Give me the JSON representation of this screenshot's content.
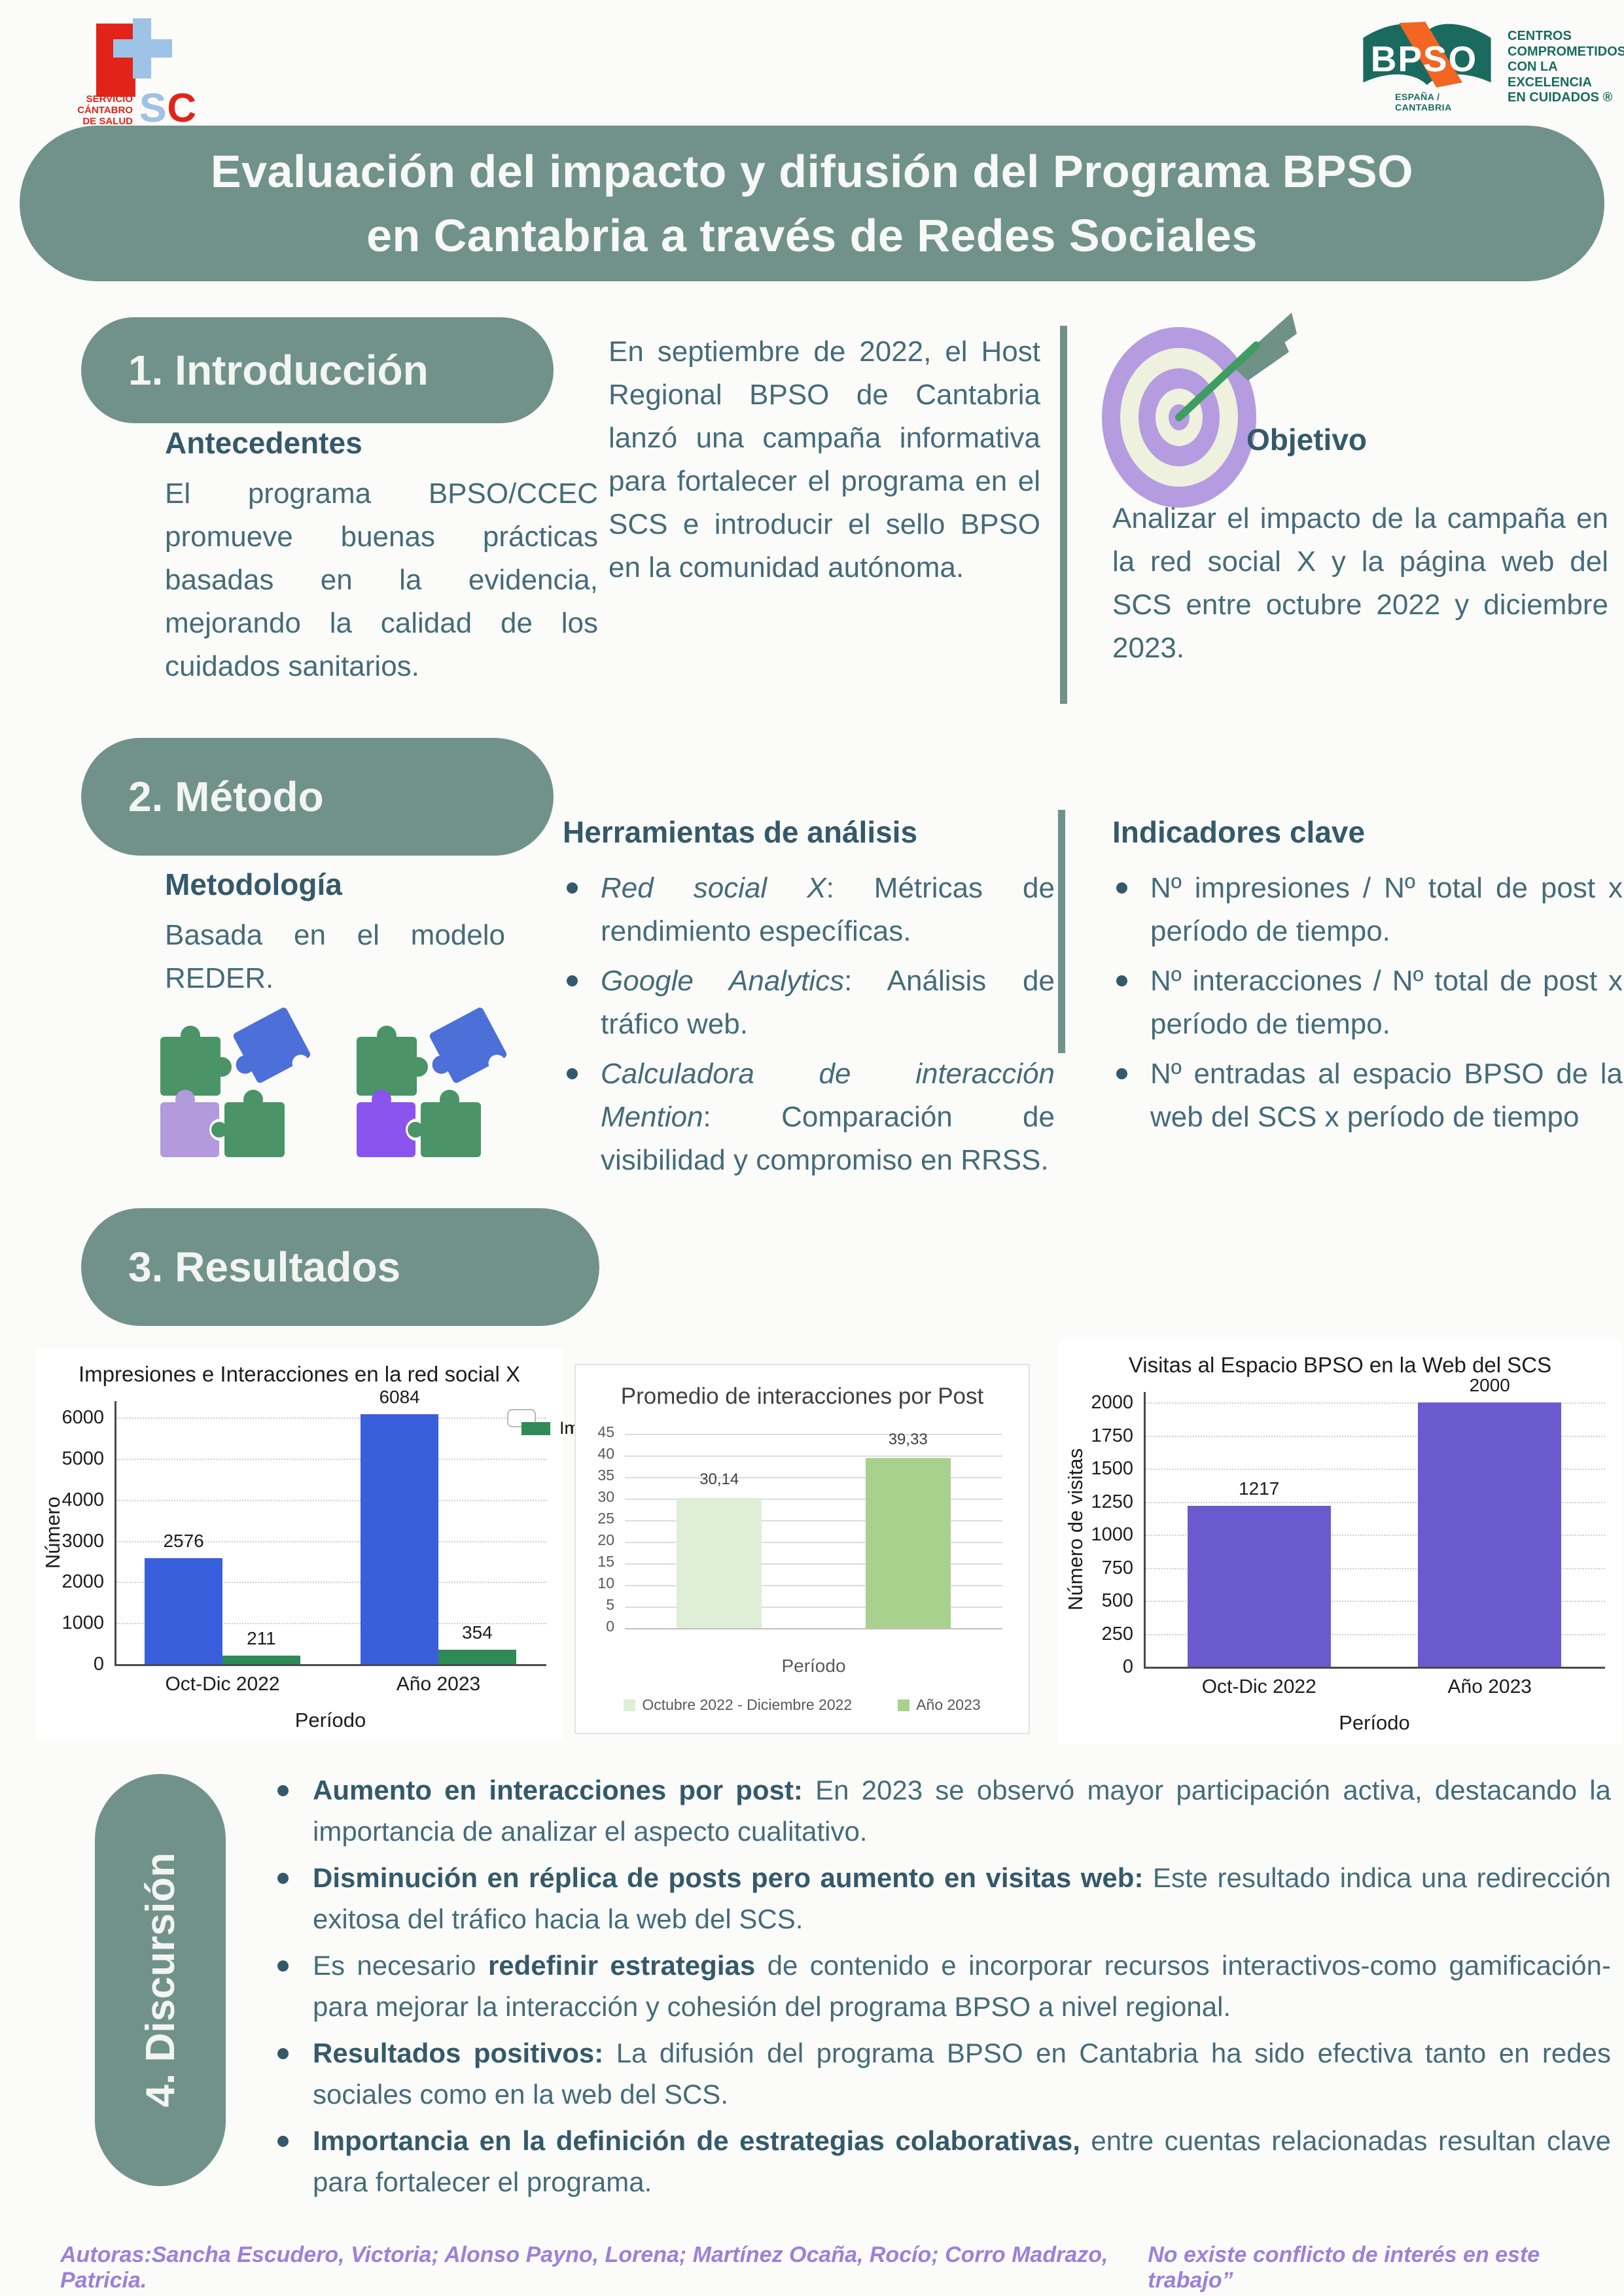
{
  "header": {
    "scs": {
      "small_text": "SERVICIO\nCÁNTABRO\nDE SALUD",
      "acr_red": "SC",
      "acr_blue": "S"
    },
    "bpso": {
      "acronym": "BPSO",
      "tagline": "CENTROS\nCOMPROMETIDOS\nCON LA\nEXCELENCIA\nEN CUIDADOS ®",
      "region": "ESPAÑA / CANTABRIA"
    }
  },
  "title": {
    "line1": "Evaluación del impacto y difusión del Programa BPSO",
    "line2": "en Cantabria a través de Redes Sociales"
  },
  "sections": {
    "intro": {
      "heading": "1. Introducción",
      "antecedentes_title": "Antecedentes",
      "antecedentes_text": "El programa BPSO/CCEC promueve buenas prácticas basadas en la evidencia, mejorando la calidad de los cuidados sanitarios.",
      "campaign_text": "En septiembre de 2022, el Host Regional BPSO de Cantabria lanzó una campaña informativa para fortalecer el programa en el SCS e introducir el sello BPSO en la comunidad autónoma.",
      "objetivo_title": "Objetivo",
      "objetivo_text": "Analizar el impacto de la campaña en la red social X y la página web del SCS entre octubre 2022 y diciembre 2023."
    },
    "metodo": {
      "heading": "2. Método",
      "metodologia_title": "Metodología",
      "metodologia_text": "Basada en el modelo REDER.",
      "herramientas_title": "Herramientas de análisis",
      "herramientas": [
        {
          "lead": "Red social X",
          "rest": ": Métricas de rendimiento específicas."
        },
        {
          "lead": "Google Analytics",
          "rest": ": Análisis de tráfico web."
        },
        {
          "lead": "Calculadora de interacción Mention",
          "rest": ": Comparación de visibilidad y compromiso en RRSS."
        }
      ],
      "indicadores_title": "Indicadores clave",
      "indicadores": [
        "Nº impresiones / Nº total de post x período de tiempo.",
        "Nº interacciones / Nº total de post x período de tiempo.",
        "Nº entradas al espacio BPSO de la web del SCS x período de tiempo"
      ]
    },
    "resultados": {
      "heading": "3. Resultados"
    },
    "discusion": {
      "heading": "4. Discursión",
      "bullets": [
        {
          "bold": "Aumento en interacciones por post:",
          "text": " En 2023 se observó mayor participación activa, destacando la importancia de analizar el aspecto cualitativo."
        },
        {
          "bold": "Disminución en réplica de posts pero aumento en visitas web:",
          "text": " Este resultado indica una redirección exitosa del tráfico hacia la web del SCS."
        },
        {
          "pre": "Es necesario ",
          "bold": "redefinir estrategias",
          "text": " de contenido e incorporar recursos interactivos-como gamificación- para mejorar la interacción y cohesión del programa BPSO a nivel regional."
        },
        {
          "bold": "Resultados positivos:",
          "text": " La difusión del programa BPSO en Cantabria ha sido efectiva tanto en redes sociales como en la web del SCS."
        },
        {
          "bold": "Importancia en la definición de estrategias colaborativas,",
          "text": " entre cuentas relacionadas resultan clave para fortalecer el programa."
        }
      ]
    }
  },
  "footer": {
    "authors": "Autoras:Sancha Escudero, Victoria; Alonso Payno, Lorena; Martínez Ocaña, Rocío; Corro Madrazo, Patricia.",
    "disclaimer": "No existe conflicto de interés en este trabajo”"
  },
  "colors": {
    "sage_green": "#71928a",
    "ink_teal": "#456b79",
    "heading_teal": "#34596a",
    "footer_purple": "#9d80d8",
    "scs_red": "#e2231a",
    "scs_blue": "#9dc3e6",
    "bpso_teal": "#1b6a60",
    "bpso_orange": "#f26522",
    "puzzle_green": "#4a9468",
    "puzzle_blue": "#4d6fd8",
    "puzzle_lavender": "#b29add",
    "puzzle_purple": "#8a53ee",
    "target_purple": "#b59ce0",
    "target_cream": "#edf1dd",
    "arrow_green": "#3f9c63",
    "feather_green": "#6f9186"
  },
  "chart_data": [
    {
      "id": "chart1",
      "type": "bar",
      "style": "matplotlib",
      "title": "Impresiones e Interacciones en la red social X",
      "xlabel": "Período",
      "ylabel": "Número",
      "categories": [
        "Oct-Dic 2022",
        "Año 2023"
      ],
      "series": [
        {
          "name": "Impresiones",
          "color": "#3a5fdc",
          "values": [
            2576,
            6084
          ],
          "labels": [
            "2576",
            "6084"
          ]
        },
        {
          "name": "Interacciones",
          "color": "#2e8b57",
          "values": [
            211,
            354
          ],
          "labels": [
            "211",
            "354"
          ]
        }
      ],
      "ylim": [
        0,
        6400
      ],
      "yticks": [
        0,
        1000,
        2000,
        3000,
        4000,
        5000,
        6000
      ],
      "grid": "dotted",
      "legend": {
        "position": "top-right",
        "items": [
          {
            "label": "Impresiones",
            "color": "#3a5fdc"
          },
          {
            "label": "Interacciones",
            "color": "#2e8b57"
          }
        ]
      }
    },
    {
      "id": "chart2",
      "type": "bar",
      "style": "excel",
      "title": "Promedio de interacciones por Post",
      "xlabel": "Período",
      "ylabel": "",
      "categories": [
        "",
        ""
      ],
      "series": [
        {
          "name": "Promedio",
          "colors": [
            "#dfeed7",
            "#a9d18e"
          ],
          "values": [
            30.14,
            39.33
          ],
          "labels": [
            "30,14",
            "39,33"
          ]
        }
      ],
      "bar_frac": 0.45,
      "ylim": [
        0,
        45
      ],
      "yticks": [
        0,
        5,
        10,
        15,
        20,
        25,
        30,
        35,
        40,
        45
      ],
      "grid": "solid",
      "legend": {
        "position": "bottom",
        "items": [
          {
            "label": "Octubre 2022 - Diciembre 2022",
            "color": "#dfeed7"
          },
          {
            "label": "Año 2023",
            "color": "#a9d18e"
          }
        ]
      }
    },
    {
      "id": "chart3",
      "type": "bar",
      "style": "matplotlib",
      "title": "Visitas al Espacio BPSO en la Web del SCS",
      "xlabel": "Período",
      "ylabel": "Número de visitas",
      "categories": [
        "Oct-Dic 2022",
        "Año 2023"
      ],
      "series": [
        {
          "name": "Visitas",
          "color": "#6a5acd",
          "values": [
            1217,
            2000
          ],
          "labels": [
            "1217",
            "2000"
          ]
        }
      ],
      "bar_frac": 0.62,
      "ylim": [
        0,
        2080
      ],
      "yticks": [
        0,
        250,
        500,
        750,
        1000,
        1250,
        1500,
        1750,
        2000
      ],
      "grid": "dotted",
      "legend": null
    }
  ]
}
